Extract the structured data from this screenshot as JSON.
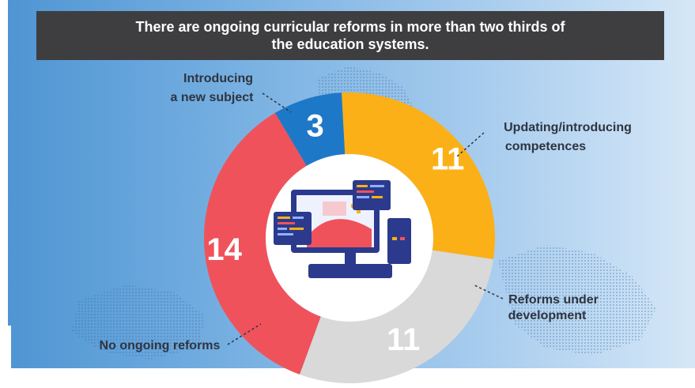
{
  "title": "There are ongoing curricular reforms in more than two thirds of the education systems.",
  "chart_data": {
    "type": "pie",
    "donut": true,
    "categories": [
      "Introducing a new subject",
      "Updating/introducing competences",
      "Reforms under development",
      "No ongoing reforms"
    ],
    "values": [
      14,
      3,
      11,
      11
    ],
    "label_lines": [
      [
        "Introducing",
        "a new subject"
      ],
      [
        "Updating/introducing",
        "competences"
      ],
      [
        "Reforms under",
        "development"
      ],
      [
        "No ongoing reforms"
      ]
    ],
    "colors": [
      "#f0525b",
      "#1e78c8",
      "#fbb017",
      "#d9d9d9"
    ],
    "center_icon": "computer-icon"
  }
}
